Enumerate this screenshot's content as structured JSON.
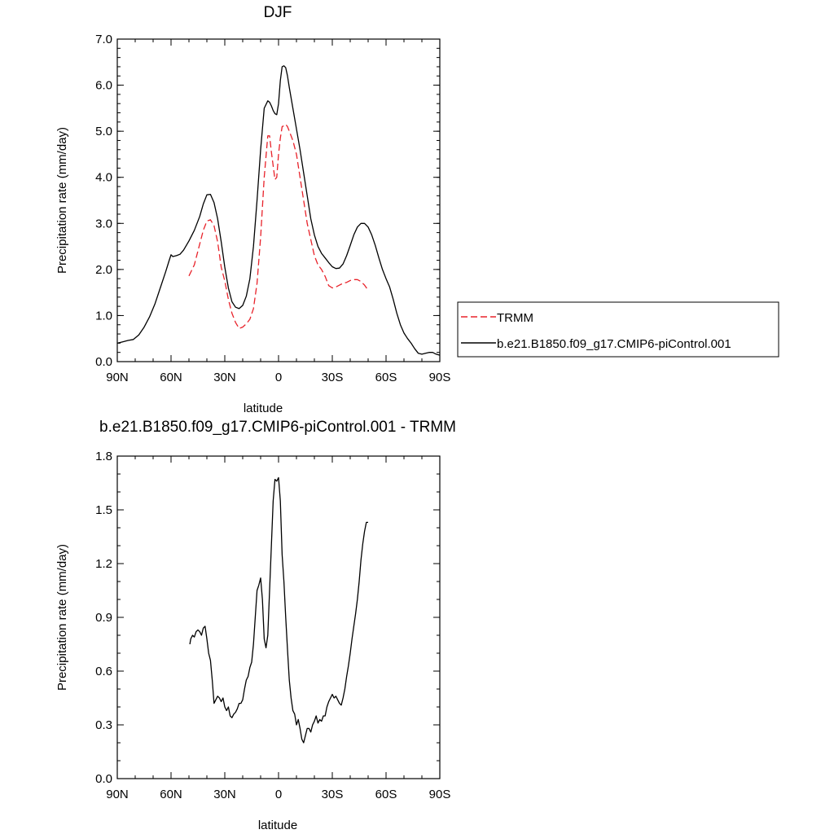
{
  "chart_data": [
    {
      "type": "line",
      "title": "DJF",
      "xlabel": "latitude",
      "ylabel": "Precipitation rate (mm/day)",
      "xlim": [
        90,
        -90
      ],
      "ylim": [
        0,
        7
      ],
      "x_ticks": [
        90,
        60,
        30,
        0,
        -30,
        -60,
        -90
      ],
      "x_tick_labels": [
        "90N",
        "60N",
        "30N",
        "0",
        "30S",
        "60S",
        "90S"
      ],
      "y_ticks": [
        0,
        1,
        2,
        3,
        4,
        5,
        6,
        7
      ],
      "y_tick_labels": [
        "0.0",
        "1.0",
        "2.0",
        "3.0",
        "4.0",
        "5.0",
        "6.0",
        "7.0"
      ],
      "legend_position": "right",
      "series": [
        {
          "name": "TRMM",
          "color": "#e8222a",
          "dash": "dashed",
          "x": [
            50,
            47,
            44,
            42,
            40,
            38,
            36,
            34,
            32,
            30,
            28,
            26,
            24,
            22,
            20,
            18,
            16,
            14,
            12,
            10,
            8,
            6,
            5,
            4,
            3,
            2,
            1,
            0,
            -1,
            -2,
            -3,
            -4,
            -5,
            -6,
            -8,
            -10,
            -12,
            -14,
            -16,
            -18,
            -20,
            -22,
            -24,
            -26,
            -28,
            -30,
            -32,
            -34,
            -36,
            -38,
            -40,
            -42,
            -44,
            -46,
            -48,
            -50
          ],
          "y": [
            1.86,
            2.1,
            2.55,
            2.85,
            3.05,
            3.08,
            2.95,
            2.6,
            2.05,
            1.75,
            1.35,
            1.05,
            0.85,
            0.72,
            0.75,
            0.82,
            0.92,
            1.15,
            1.7,
            2.7,
            4.0,
            4.9,
            4.9,
            4.55,
            4.25,
            3.95,
            4.0,
            4.5,
            4.85,
            5.1,
            5.12,
            5.15,
            5.1,
            5.0,
            4.8,
            4.5,
            4.0,
            3.5,
            3.0,
            2.65,
            2.3,
            2.1,
            2.0,
            1.85,
            1.65,
            1.6,
            1.62,
            1.66,
            1.7,
            1.72,
            1.76,
            1.78,
            1.78,
            1.74,
            1.66,
            1.55
          ]
        },
        {
          "name": "b.e21.B1850.f09_g17.CMIP6-piControl.001",
          "color": "#000000",
          "dash": "solid",
          "x": [
            90,
            87,
            84,
            81,
            78,
            75,
            72,
            69,
            66,
            63,
            61,
            60,
            59,
            57,
            55,
            53,
            50,
            47,
            44,
            42,
            40,
            38,
            36,
            34,
            32,
            30,
            28,
            26,
            24,
            22,
            20,
            18,
            16,
            14,
            12,
            10,
            8,
            6,
            5,
            4,
            3,
            2,
            1,
            0,
            -1,
            -2,
            -3,
            -4,
            -5,
            -6,
            -8,
            -10,
            -12,
            -14,
            -16,
            -18,
            -20,
            -22,
            -24,
            -26,
            -28,
            -30,
            -32,
            -34,
            -36,
            -38,
            -40,
            -42,
            -44,
            -46,
            -48,
            -50,
            -52,
            -54,
            -56,
            -58,
            -60,
            -62,
            -64,
            -66,
            -68,
            -70,
            -72,
            -74,
            -76,
            -78,
            -80,
            -82,
            -84,
            -86,
            -88,
            -90
          ],
          "y": [
            0.4,
            0.43,
            0.46,
            0.48,
            0.58,
            0.75,
            0.97,
            1.25,
            1.6,
            1.95,
            2.2,
            2.32,
            2.28,
            2.3,
            2.33,
            2.42,
            2.62,
            2.85,
            3.15,
            3.42,
            3.62,
            3.63,
            3.45,
            3.1,
            2.6,
            2.05,
            1.6,
            1.3,
            1.18,
            1.15,
            1.22,
            1.42,
            1.8,
            2.5,
            3.5,
            4.6,
            5.5,
            5.66,
            5.63,
            5.55,
            5.45,
            5.38,
            5.36,
            5.6,
            6.1,
            6.4,
            6.42,
            6.38,
            6.2,
            5.95,
            5.5,
            5.05,
            4.6,
            4.1,
            3.6,
            3.1,
            2.75,
            2.5,
            2.35,
            2.25,
            2.15,
            2.06,
            2.02,
            2.03,
            2.12,
            2.3,
            2.52,
            2.75,
            2.92,
            3.0,
            3.0,
            2.92,
            2.75,
            2.52,
            2.25,
            2.0,
            1.8,
            1.62,
            1.35,
            1.05,
            0.8,
            0.62,
            0.5,
            0.4,
            0.28,
            0.18,
            0.16,
            0.18,
            0.2,
            0.2,
            0.16,
            0.14
          ]
        }
      ]
    },
    {
      "type": "line",
      "title": "b.e21.B1850.f09_g17.CMIP6-piControl.001 - TRMM",
      "xlabel": "latitude",
      "ylabel": "Precipitation rate (mm/day)",
      "xlim": [
        90,
        -90
      ],
      "ylim": [
        0,
        1.8
      ],
      "x_ticks": [
        90,
        60,
        30,
        0,
        -30,
        -60,
        -90
      ],
      "x_tick_labels": [
        "90N",
        "60N",
        "30N",
        "0",
        "30S",
        "60S",
        "90S"
      ],
      "y_ticks": [
        0,
        0.3,
        0.6,
        0.9,
        1.2,
        1.5,
        1.8
      ],
      "y_tick_labels": [
        "0.0",
        "0.3",
        "0.6",
        "0.9",
        "1.2",
        "1.5",
        "1.8"
      ],
      "series": [
        {
          "color": "#000000",
          "dash": "solid",
          "x": [
            49.5,
            49,
            48,
            47,
            46,
            45,
            44,
            43,
            42,
            41,
            40,
            39,
            38,
            37,
            36,
            35,
            34,
            33,
            32,
            31,
            30,
            29,
            28,
            27,
            26,
            25,
            24,
            23,
            22,
            21,
            20,
            19,
            18,
            17,
            16,
            15,
            14,
            13,
            12,
            11,
            10,
            9,
            8,
            7,
            6,
            5,
            4,
            3,
            2,
            1,
            0,
            -1,
            -2,
            -3,
            -4,
            -5,
            -6,
            -7,
            -8,
            -9,
            -10,
            -11,
            -12,
            -13,
            -14,
            -15,
            -16,
            -17,
            -18,
            -19,
            -20,
            -21,
            -22,
            -23,
            -24,
            -25,
            -26,
            -27,
            -28,
            -29,
            -30,
            -31,
            -32,
            -33,
            -34,
            -35,
            -36,
            -37,
            -38,
            -39,
            -40,
            -41,
            -42,
            -43,
            -44,
            -45,
            -46,
            -47,
            -48,
            -49,
            -50
          ],
          "y": [
            0.75,
            0.78,
            0.8,
            0.79,
            0.82,
            0.83,
            0.82,
            0.8,
            0.84,
            0.85,
            0.78,
            0.7,
            0.66,
            0.55,
            0.42,
            0.44,
            0.46,
            0.45,
            0.43,
            0.45,
            0.4,
            0.38,
            0.4,
            0.35,
            0.34,
            0.36,
            0.37,
            0.39,
            0.42,
            0.42,
            0.44,
            0.5,
            0.55,
            0.57,
            0.62,
            0.65,
            0.75,
            0.9,
            1.05,
            1.08,
            1.12,
            1.0,
            0.78,
            0.73,
            0.8,
            1.05,
            1.3,
            1.55,
            1.67,
            1.66,
            1.68,
            1.55,
            1.25,
            1.1,
            0.9,
            0.72,
            0.55,
            0.45,
            0.38,
            0.36,
            0.3,
            0.33,
            0.28,
            0.22,
            0.2,
            0.24,
            0.28,
            0.28,
            0.26,
            0.3,
            0.32,
            0.35,
            0.31,
            0.33,
            0.32,
            0.35,
            0.35,
            0.4,
            0.43,
            0.45,
            0.47,
            0.45,
            0.46,
            0.44,
            0.42,
            0.41,
            0.45,
            0.5,
            0.57,
            0.63,
            0.7,
            0.78,
            0.85,
            0.92,
            1.0,
            1.1,
            1.22,
            1.31,
            1.38,
            1.43,
            1.43
          ]
        }
      ]
    }
  ]
}
